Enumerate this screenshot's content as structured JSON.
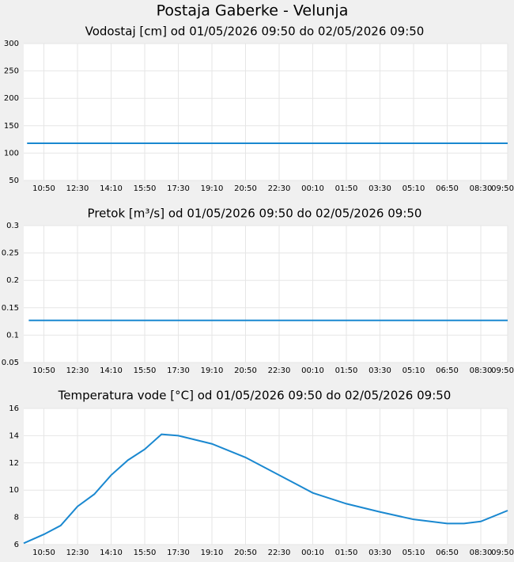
{
  "header": {
    "title": "Postaja Gaberke - Velunja"
  },
  "chart_data": [
    {
      "type": "line",
      "title": "Vodostaj [cm] od 01/05/2026 09:50 do 02/05/2026 09:50",
      "x": [
        10,
        1440
      ],
      "color": "#1a88d0",
      "values": [
        118,
        118
      ],
      "xlim": [
        0,
        1440
      ],
      "ylim": [
        50,
        300
      ],
      "yticks": [
        50,
        100,
        150,
        200,
        250,
        300
      ],
      "xticks": [
        {
          "value": 60,
          "label": "10:50"
        },
        {
          "value": 160,
          "label": "12:30"
        },
        {
          "value": 260,
          "label": "14:10"
        },
        {
          "value": 360,
          "label": "15:50"
        },
        {
          "value": 460,
          "label": "17:30"
        },
        {
          "value": 560,
          "label": "19:10"
        },
        {
          "value": 660,
          "label": "20:50"
        },
        {
          "value": 760,
          "label": "22:30"
        },
        {
          "value": 860,
          "label": "00:10"
        },
        {
          "value": 960,
          "label": "01:50"
        },
        {
          "value": 1060,
          "label": "03:30"
        },
        {
          "value": 1160,
          "label": "05:10"
        },
        {
          "value": 1260,
          "label": "06:50"
        },
        {
          "value": 1360,
          "label": "08:30"
        },
        {
          "value": 1440,
          "label": "09:50"
        }
      ],
      "grid": true
    },
    {
      "type": "line",
      "title": "Pretok [m³/s] od 01/05/2026 09:50 do 02/05/2026 09:50",
      "x": [
        15,
        1440
      ],
      "color": "#1a88d0",
      "values": [
        0.127,
        0.127
      ],
      "xlim": [
        0,
        1440
      ],
      "ylim": [
        0.05,
        0.3
      ],
      "yticks": [
        0.05,
        0.1,
        0.15,
        0.2,
        0.25,
        0.3
      ],
      "xticks": [
        {
          "value": 60,
          "label": "10:50"
        },
        {
          "value": 160,
          "label": "12:30"
        },
        {
          "value": 260,
          "label": "14:10"
        },
        {
          "value": 360,
          "label": "15:50"
        },
        {
          "value": 460,
          "label": "17:30"
        },
        {
          "value": 560,
          "label": "19:10"
        },
        {
          "value": 660,
          "label": "20:50"
        },
        {
          "value": 760,
          "label": "22:30"
        },
        {
          "value": 860,
          "label": "00:10"
        },
        {
          "value": 960,
          "label": "01:50"
        },
        {
          "value": 1060,
          "label": "03:30"
        },
        {
          "value": 1160,
          "label": "05:10"
        },
        {
          "value": 1260,
          "label": "06:50"
        },
        {
          "value": 1360,
          "label": "08:30"
        },
        {
          "value": 1440,
          "label": "09:50"
        }
      ],
      "grid": true
    },
    {
      "type": "line",
      "title": "Temperatura vode [°C] od 01/05/2026 09:50 do 02/05/2026 09:50",
      "x": [
        0,
        60,
        110,
        160,
        210,
        260,
        310,
        360,
        410,
        460,
        560,
        660,
        760,
        860,
        960,
        1060,
        1160,
        1260,
        1310,
        1360,
        1440
      ],
      "color": "#1a88d0",
      "values": [
        6.1,
        6.75,
        7.4,
        8.8,
        9.7,
        11.1,
        12.2,
        13.0,
        14.1,
        14.0,
        13.4,
        12.4,
        11.1,
        9.8,
        9.0,
        8.4,
        7.85,
        7.55,
        7.55,
        7.7,
        8.5
      ],
      "xlim": [
        0,
        1440
      ],
      "ylim": [
        6,
        16
      ],
      "yticks": [
        6,
        8,
        10,
        12,
        14,
        16
      ],
      "xticks": [
        {
          "value": 60,
          "label": "10:50"
        },
        {
          "value": 160,
          "label": "12:30"
        },
        {
          "value": 260,
          "label": "14:10"
        },
        {
          "value": 360,
          "label": "15:50"
        },
        {
          "value": 460,
          "label": "17:30"
        },
        {
          "value": 560,
          "label": "19:10"
        },
        {
          "value": 660,
          "label": "20:50"
        },
        {
          "value": 760,
          "label": "22:30"
        },
        {
          "value": 860,
          "label": "00:10"
        },
        {
          "value": 960,
          "label": "01:50"
        },
        {
          "value": 1060,
          "label": "03:30"
        },
        {
          "value": 1160,
          "label": "05:10"
        },
        {
          "value": 1260,
          "label": "06:50"
        },
        {
          "value": 1360,
          "label": "08:30"
        },
        {
          "value": 1440,
          "label": "09:50"
        }
      ],
      "grid": true
    }
  ]
}
